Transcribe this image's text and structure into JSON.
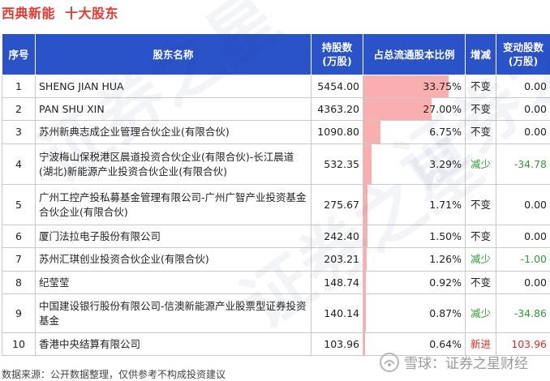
{
  "header": {
    "stock_name": "西典新能",
    "report_name": "十大股东"
  },
  "table": {
    "columns": {
      "rank": "序号",
      "name": "股东名称",
      "shares_line1": "持股数",
      "shares_line2": "(万股)",
      "ratio": "占总流通股本比例",
      "change_type": "增减",
      "change_line1": "变动股数",
      "change_line2": "(万股)"
    },
    "rows": [
      {
        "rank": "1",
        "name": "SHENG JIAN HUA",
        "shares": "5454.00",
        "ratio_text": "33.75%",
        "ratio": 33.75,
        "change_type": "不变",
        "change_class": "same",
        "change": "0.00"
      },
      {
        "rank": "2",
        "name": "PAN SHU XIN",
        "shares": "4363.20",
        "ratio_text": "27.00%",
        "ratio": 27.0,
        "change_type": "不变",
        "change_class": "same",
        "change": "0.00"
      },
      {
        "rank": "3",
        "name": "苏州新典志成企业管理合伙企业(有限合伙)",
        "shares": "1090.80",
        "ratio_text": "6.75%",
        "ratio": 6.75,
        "change_type": "不变",
        "change_class": "same",
        "change": "0.00"
      },
      {
        "rank": "4",
        "name": "宁波梅山保税港区晨道投资合伙企业(有限合伙)-长江晨道(湖北)新能源产业投资合伙企业(有限合伙)",
        "shares": "532.35",
        "ratio_text": "3.29%",
        "ratio": 3.29,
        "change_type": "减少",
        "change_class": "dec",
        "change": "-34.78"
      },
      {
        "rank": "5",
        "name": "广州工控产投私募基金管理有限公司-广州广智产业投资基金合伙企业(有限合伙)",
        "shares": "275.67",
        "ratio_text": "1.71%",
        "ratio": 1.71,
        "change_type": "不变",
        "change_class": "same",
        "change": "0.00"
      },
      {
        "rank": "6",
        "name": "厦门法拉电子股份有限公司",
        "shares": "242.40",
        "ratio_text": "1.50%",
        "ratio": 1.5,
        "change_type": "不变",
        "change_class": "same",
        "change": "0.00"
      },
      {
        "rank": "7",
        "name": "苏州汇琪创业投资合伙企业(有限合伙)",
        "shares": "203.21",
        "ratio_text": "1.26%",
        "ratio": 1.26,
        "change_type": "减少",
        "change_class": "dec",
        "change": "-1.00"
      },
      {
        "rank": "8",
        "name": "纪莹莹",
        "shares": "148.74",
        "ratio_text": "0.92%",
        "ratio": 0.92,
        "change_type": "不变",
        "change_class": "same",
        "change": "0.00"
      },
      {
        "rank": "9",
        "name": "中国建设银行股份有限公司-信澳新能源产业股票型证券投资基金",
        "shares": "140.14",
        "ratio_text": "0.87%",
        "ratio": 0.87,
        "change_type": "减少",
        "change_class": "dec",
        "change": "-34.86"
      },
      {
        "rank": "10",
        "name": "香港中央结算有限公司",
        "shares": "103.96",
        "ratio_text": "0.64%",
        "ratio": 0.64,
        "change_type": "新进",
        "change_class": "inc",
        "change": "103.96"
      }
    ]
  },
  "footer": {
    "source": "数据来源：公开数据整理，仅供参考不构成投资建议",
    "brand": "雪球：证券之星财经"
  },
  "watermark": "证券之星",
  "colors": {
    "title": "#e8382f",
    "header_bg": "#2a52c9",
    "bar": "#f9aeb0",
    "decrease": "#2f9a35",
    "increase": "#e22826"
  },
  "icons": {
    "brand_logo": "snowball-logo-icon"
  }
}
